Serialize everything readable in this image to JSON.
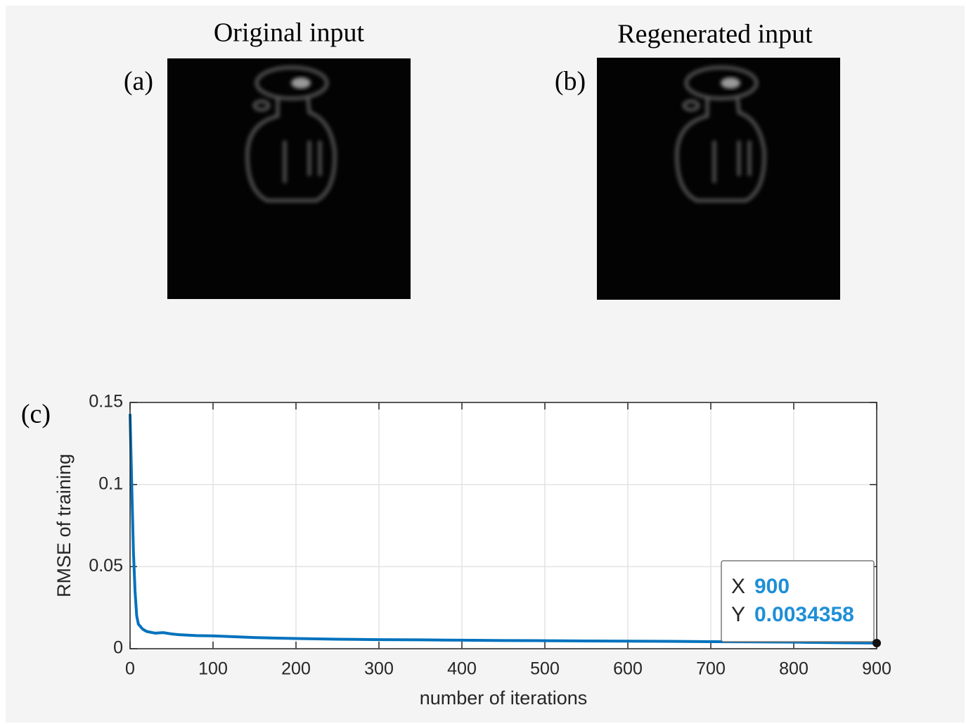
{
  "panels": [
    {
      "label": "(a)",
      "title": "Original input"
    },
    {
      "label": "(b)",
      "title": "Regenerated input"
    }
  ],
  "chart_label": "(c)",
  "chart_data": {
    "type": "line",
    "xlabel": "number of iterations",
    "ylabel": "RMSE of training",
    "x": [
      0,
      2,
      4,
      6,
      8,
      10,
      15,
      20,
      30,
      40,
      50,
      60,
      80,
      100,
      150,
      200,
      250,
      300,
      350,
      400,
      450,
      500,
      550,
      600,
      650,
      700,
      750,
      800,
      850,
      900
    ],
    "series": [
      {
        "color": "#0072bd",
        "values": [
          0.143,
          0.1,
          0.06,
          0.035,
          0.02,
          0.015,
          0.012,
          0.0105,
          0.0095,
          0.0098,
          0.009,
          0.0085,
          0.008,
          0.0078,
          0.0068,
          0.0062,
          0.0058,
          0.0055,
          0.0054,
          0.0052,
          0.005,
          0.0049,
          0.0047,
          0.0046,
          0.0045,
          0.0043,
          0.0042,
          0.004,
          0.0037,
          0.0034358
        ]
      }
    ],
    "xlim": [
      0,
      900
    ],
    "ylim": [
      0,
      0.15
    ],
    "xticks": [
      0,
      100,
      200,
      300,
      400,
      500,
      600,
      700,
      800,
      900
    ],
    "yticks": [
      0,
      0.05,
      0.1,
      0.15
    ],
    "grid": true,
    "datatip": {
      "x_label": "X",
      "x": 900,
      "y_label": "Y",
      "y": 0.0034358
    }
  }
}
